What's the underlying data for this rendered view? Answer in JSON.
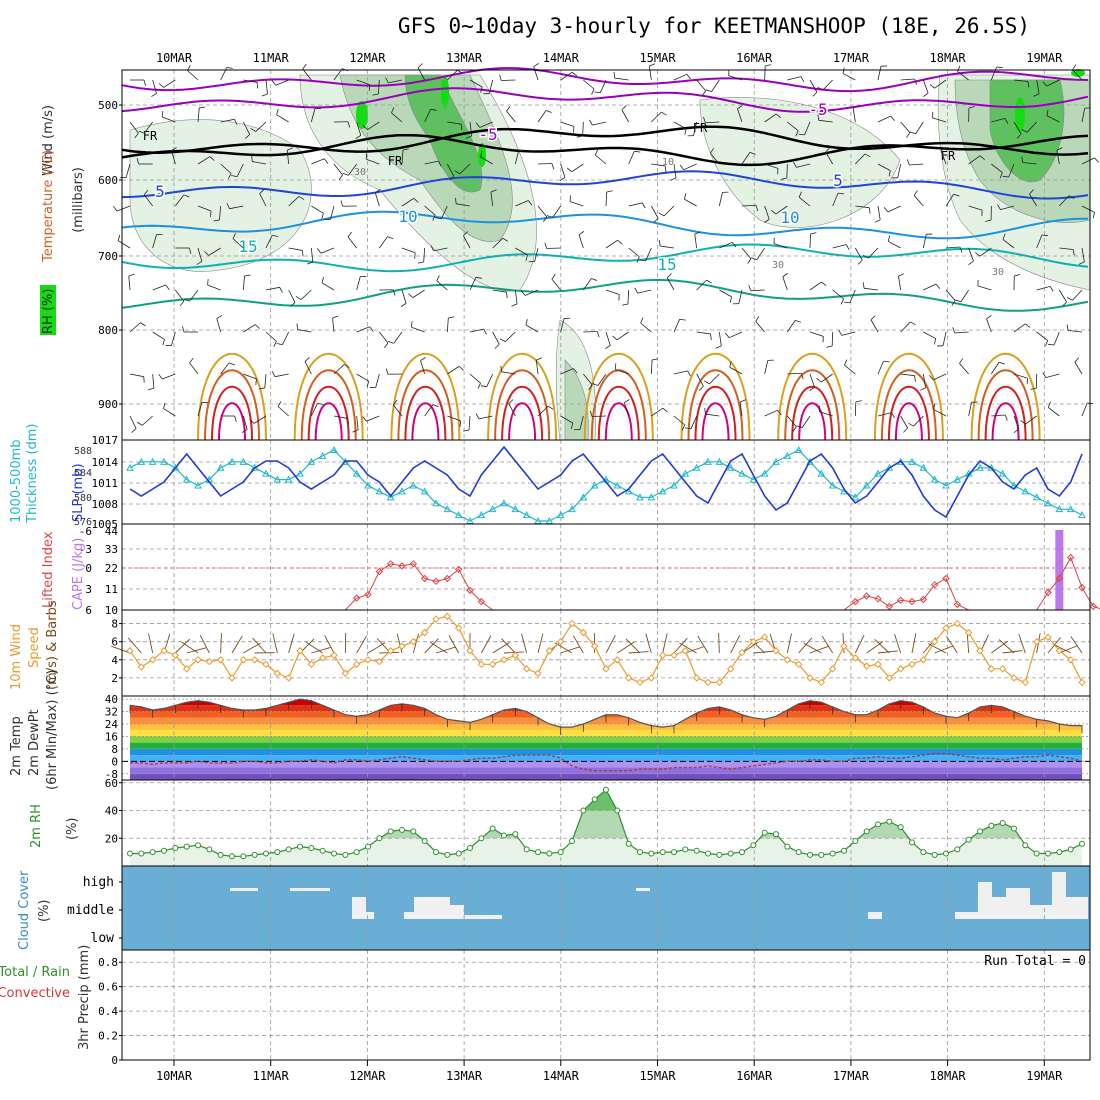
{
  "header": {
    "title": "GFS 0~10day 3-hourly for KEETMANSHOOP (18E, 26.5S)"
  },
  "colors": {
    "temp_minus5": "#9900bb",
    "temp_0": "#000000",
    "temp_5": "#1f44d8",
    "temp_10": "#1e90e0",
    "temp_15": "#10b0b0",
    "temp_20": "#10a080",
    "temp_25": "#d9a020",
    "temp_30": "#d06020",
    "temp_35": "#d02020",
    "temp_40": "#d00080",
    "rh_light": "#e3f2e3",
    "rh_mid": "#b8d8b8",
    "rh_dark": "#5fc05f",
    "rh_bright": "#11dd11",
    "slp": "#1f3bd2",
    "thickness": "#22b8c8",
    "li": "#dd4444",
    "cape": "#bb77ee",
    "wind": "#e89b30",
    "barb": "#7a4a1a",
    "rh2m": "#2f8f2f",
    "cloud": "#6aaed6",
    "grid": "#999999"
  },
  "dates": [
    "10MAR",
    "11MAR",
    "12MAR",
    "13MAR",
    "14MAR",
    "15MAR",
    "16MAR",
    "17MAR",
    "18MAR",
    "19MAR"
  ],
  "labels": {
    "panel1": {
      "wind": "Wind (m/s)",
      "temp": "Temperature (°C)",
      "rh": "RH (%)",
      "unit": "(millibars)"
    },
    "panel2": {
      "thick1": "1000-500mb",
      "thick2": "Thickness (dm)",
      "slp": "SLP (mb)"
    },
    "panel3": {
      "li": "Lifted Index",
      "cape": "CAPE (J/kg)"
    },
    "panel4": {
      "a": "10m Wind",
      "b": "Speed",
      "c": "(m/s) & Barbs"
    },
    "panel5": {
      "a": "2m Temp",
      "b": "2m DewPt",
      "c": "(6hr Min/Max) (°C)"
    },
    "panel6": {
      "a": "2m RH",
      "b": "(%)"
    },
    "panel7": {
      "a": "Cloud Cover",
      "b": "(%)"
    },
    "panel8": {
      "a": "Total / Rain",
      "b": "Convective",
      "c": "3hr Precip (mm)"
    }
  },
  "cloud_levels": [
    "high",
    "middle",
    "low"
  ],
  "run_total": "Run Total = 0",
  "fr_label": "FR",
  "chart_data": [
    {
      "type": "heatmap",
      "name": "upper-air cross section",
      "y_ticks": [
        "500",
        "600",
        "700",
        "800",
        "900"
      ],
      "temp_contours": [
        "-5",
        "5",
        "10",
        "15",
        "-5",
        "5",
        "10",
        "15"
      ],
      "gray_labels": [
        "30",
        "10",
        "30",
        "30"
      ]
    },
    {
      "type": "line",
      "thickness_ticks": [
        "588",
        "584",
        "580",
        "576"
      ],
      "slp_ticks": [
        "1017",
        "1014",
        "1011",
        "1008",
        "1005"
      ],
      "series": [
        {
          "name": "SLP",
          "values": [
            1010,
            1009,
            1010,
            1011,
            1013,
            1015,
            1013,
            1011,
            1009,
            1010,
            1011,
            1013,
            1014,
            1014,
            1013,
            1011,
            1010,
            1011,
            1012,
            1014,
            1014,
            1012,
            1011,
            1009,
            1011,
            1013,
            1014,
            1013,
            1012,
            1010,
            1009,
            1012,
            1014,
            1016,
            1014,
            1012,
            1010,
            1011,
            1012,
            1014,
            1015,
            1013,
            1011,
            1009,
            1010,
            1012,
            1014,
            1015,
            1013,
            1011,
            1009,
            1008,
            1011,
            1014,
            1015,
            1012,
            1009,
            1007,
            1008,
            1011,
            1014,
            1015,
            1013,
            1010,
            1008,
            1009,
            1011,
            1013,
            1014,
            1012,
            1009,
            1007,
            1006,
            1009,
            1012,
            1014,
            1013,
            1011,
            1010,
            1012,
            1013,
            1010,
            1009,
            1011,
            1015
          ]
        },
        {
          "name": "Thickness",
          "values": [
            585,
            586,
            586,
            586,
            585,
            583,
            582,
            583,
            585,
            586,
            586,
            585,
            584,
            583,
            583,
            584,
            586,
            587,
            588,
            586,
            584,
            582,
            581,
            580,
            581,
            582,
            581,
            579,
            578,
            577,
            576,
            577,
            578,
            579,
            578,
            577,
            576,
            576,
            577,
            578,
            580,
            582,
            583,
            582,
            581,
            580,
            580,
            581,
            582,
            584,
            585,
            586,
            586,
            585,
            584,
            583,
            584,
            586,
            587,
            588,
            586,
            584,
            582,
            581,
            580,
            582,
            584,
            585,
            586,
            586,
            585,
            583,
            582,
            583,
            584,
            585,
            585,
            584,
            582,
            581,
            580,
            579,
            578,
            578,
            577
          ]
        }
      ]
    },
    {
      "type": "line",
      "li_ticks": [
        "-6",
        "-3",
        "0",
        "3",
        "6"
      ],
      "cape_ticks": [
        "44",
        "33",
        "22",
        "11",
        "10"
      ],
      "series": [
        {
          "name": "Lifted Index",
          "values": [
            6,
            6,
            6,
            6,
            6,
            6,
            6,
            6,
            6,
            6,
            6,
            6,
            6,
            6,
            6,
            6,
            6,
            6,
            6,
            6,
            4.3,
            3.8,
            0.5,
            -0.6,
            -0.3,
            -0.6,
            1.5,
            1.9,
            1.5,
            0.2,
            3.2,
            4.8,
            6,
            6,
            6,
            6,
            6,
            6,
            6,
            6,
            6,
            6,
            6,
            6,
            6,
            6,
            6,
            6,
            6,
            6,
            6,
            6,
            6,
            6,
            6,
            6,
            6,
            6,
            6,
            6,
            6,
            6,
            6,
            6,
            4.8,
            4,
            4.4,
            5.5,
            4.6,
            4.8,
            4.5,
            2.4,
            1.5,
            5.2,
            6,
            6,
            6,
            6,
            6,
            6,
            6,
            3.5,
            1.5,
            -1.5,
            2.8,
            5.5,
            6
          ]
        },
        {
          "name": "CAPE",
          "values": [
            0,
            0,
            0,
            0,
            0,
            0,
            0,
            0,
            0,
            0,
            0,
            0,
            0,
            0,
            0,
            0,
            0,
            0,
            0,
            0,
            0,
            0,
            0,
            0,
            0,
            0,
            0,
            0,
            0,
            0,
            0,
            0,
            0,
            0,
            0,
            0,
            0,
            0,
            0,
            0,
            0,
            0,
            0,
            0,
            0,
            0,
            0,
            0,
            0,
            0,
            0,
            0,
            0,
            0,
            0,
            0,
            0,
            0,
            0,
            0,
            0,
            0,
            0,
            0,
            0,
            0,
            0,
            0,
            0,
            0,
            0,
            0,
            0,
            0,
            0,
            0,
            0,
            0,
            0,
            0,
            0,
            0,
            44,
            0,
            0
          ]
        }
      ]
    },
    {
      "type": "line",
      "y_ticks": [
        "8",
        "6",
        "4",
        "2"
      ],
      "series": [
        {
          "name": "10m Wind Speed",
          "values": [
            5,
            3.2,
            4,
            5,
            4.5,
            3,
            4,
            3.8,
            4,
            2,
            4,
            4,
            3.5,
            2.5,
            2,
            5,
            3.5,
            4.2,
            4.5,
            2.5,
            3.5,
            4,
            3.8,
            5,
            5.5,
            6,
            7,
            8.5,
            8.8,
            7.5,
            5,
            3.5,
            3.5,
            4,
            4.5,
            3,
            2.5,
            5,
            6,
            8,
            7,
            5.5,
            3,
            4,
            2,
            1.5,
            2,
            4.5,
            4.5,
            5,
            2,
            1.5,
            1.5,
            3,
            4.8,
            6,
            6.5,
            5,
            4,
            3.5,
            2,
            1.5,
            3,
            5.5,
            4.2,
            3.3,
            3.5,
            2,
            3,
            3.5,
            4,
            6,
            7.5,
            8,
            7,
            5,
            3,
            3,
            2,
            1.5,
            6,
            6.5,
            5,
            4,
            1.5
          ]
        }
      ]
    },
    {
      "type": "area",
      "y_ticks": [
        "40",
        "32",
        "24",
        "16",
        "8",
        "0",
        "-8"
      ],
      "series": [
        {
          "name": "2m Temp",
          "values": [
            36,
            35,
            33,
            34,
            36,
            38,
            39,
            38,
            36,
            34,
            33,
            33,
            34,
            36,
            38,
            40,
            39,
            36,
            33,
            30,
            29,
            30,
            33,
            36,
            37,
            36,
            34,
            30,
            27,
            26,
            25,
            27,
            30,
            33,
            34,
            32,
            28,
            24,
            22,
            22,
            24,
            27,
            30,
            30,
            28,
            25,
            23,
            22,
            23,
            27,
            31,
            34,
            35,
            33,
            30,
            28,
            27,
            29,
            33,
            37,
            39,
            38,
            35,
            32,
            30,
            30,
            33,
            37,
            39,
            38,
            35,
            31,
            29,
            28,
            31,
            35,
            36,
            35,
            32,
            29,
            27,
            26,
            24,
            23,
            23
          ]
        },
        {
          "name": "2m DewPt",
          "values": [
            -1,
            -1,
            -2,
            -1,
            -1,
            -1,
            0,
            -1,
            -1,
            -1,
            0,
            0,
            -1,
            -1,
            0,
            0,
            1,
            0,
            -1,
            1,
            1,
            0,
            1,
            2,
            3,
            2,
            1,
            0,
            0,
            0,
            1,
            2,
            2,
            3,
            4,
            4,
            4,
            4,
            2,
            -3,
            -5,
            -6,
            -6,
            -6,
            -6,
            -5,
            -5,
            -5,
            -4,
            -4,
            -4,
            -3,
            -4,
            -5,
            -4,
            -3,
            -2,
            -1,
            0,
            0,
            1,
            1,
            0,
            0,
            2,
            2,
            3,
            2,
            2,
            3,
            4,
            5,
            5,
            4,
            3,
            2,
            2,
            1,
            2,
            3,
            3,
            4,
            3,
            2,
            0
          ]
        }
      ]
    },
    {
      "type": "area",
      "y_ticks": [
        "60",
        "40",
        "20"
      ],
      "series": [
        {
          "name": "2m RH",
          "values": [
            9,
            9,
            10,
            11,
            13,
            14,
            15,
            12,
            8,
            7,
            7,
            8,
            9,
            10,
            12,
            14,
            13,
            11,
            9,
            8,
            10,
            14,
            20,
            25,
            26,
            25,
            18,
            10,
            8,
            9,
            13,
            20,
            27,
            22,
            23,
            12,
            10,
            9,
            10,
            18,
            40,
            48,
            55,
            40,
            16,
            10,
            9,
            10,
            10,
            12,
            11,
            9,
            8,
            9,
            10,
            15,
            24,
            23,
            14,
            10,
            8,
            8,
            9,
            11,
            18,
            25,
            30,
            32,
            28,
            17,
            10,
            8,
            9,
            12,
            19,
            25,
            29,
            31,
            27,
            15,
            9,
            9,
            10,
            12,
            16,
            20,
            22,
            23
          ]
        }
      ]
    },
    {
      "type": "heatmap",
      "name": "cloud cover",
      "levels": [
        "high",
        "middle",
        "low"
      ]
    },
    {
      "type": "bar",
      "y_ticks": [
        "0.8",
        "0.6",
        "0.4",
        "0.2",
        "0"
      ],
      "ylim": [
        0,
        0.9
      ],
      "series": [
        {
          "name": "3hr Precip",
          "values": []
        }
      ]
    }
  ]
}
